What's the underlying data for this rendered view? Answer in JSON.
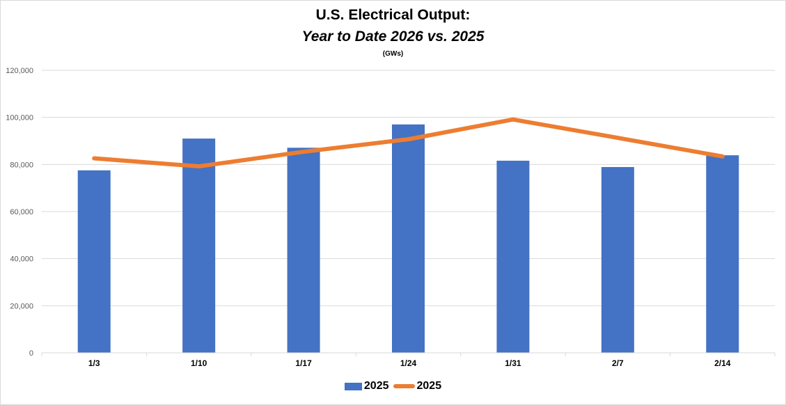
{
  "chart_data": {
    "type": "bar",
    "title": "U.S. Electrical Output:",
    "subtitle": "Year to Date 2026 vs. 2025",
    "units_label": "(GWs)",
    "xlabel": "",
    "ylabel": "",
    "ylim": [
      0,
      120000
    ],
    "yticks": [
      0,
      20000,
      40000,
      60000,
      80000,
      100000,
      120000
    ],
    "ytick_labels": [
      "0",
      "20,000",
      "40,000",
      "60,000",
      "80,000",
      "100,000",
      "120,000"
    ],
    "grid": true,
    "legend_position": "bottom",
    "categories": [
      "1/3",
      "1/10",
      "1/17",
      "1/24",
      "1/31",
      "2/7",
      "2/14"
    ],
    "series": [
      {
        "name": "2025",
        "kind": "bar",
        "color": "#4472c4",
        "values": [
          77500,
          91000,
          87100,
          97000,
          81600,
          78900,
          83900
        ]
      },
      {
        "name": "2025",
        "kind": "line",
        "color": "#ed7d31",
        "values": [
          82600,
          79200,
          85400,
          90700,
          99100,
          91300,
          83400
        ]
      }
    ]
  }
}
